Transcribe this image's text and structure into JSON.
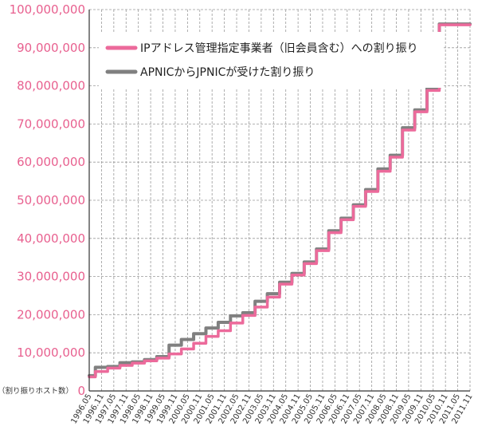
{
  "chart_data": {
    "type": "line",
    "title": "",
    "xlabel": "",
    "ylabel": "（割り振りホスト数）",
    "ylim": [
      0,
      100000000
    ],
    "y_ticks": [
      0,
      10000000,
      20000000,
      30000000,
      40000000,
      50000000,
      60000000,
      70000000,
      80000000,
      90000000,
      100000000
    ],
    "y_tick_labels": [
      "0",
      "10,000,000",
      "20,000,000",
      "30,000,000",
      "40,000,000",
      "50,000,000",
      "60,000,000",
      "70,000,000",
      "80,000,000",
      "90,000,000",
      "100,000,000"
    ],
    "x": [
      "1996.05",
      "1996.11",
      "1997.05",
      "1997.11",
      "1998.05",
      "1998.11",
      "1999.05",
      "1999.11",
      "2000.05",
      "2000.11",
      "2001.05",
      "2001.11",
      "2002.05",
      "2002.11",
      "2003.05",
      "2003.11",
      "2004.05",
      "2004.11",
      "2005.05",
      "2005.11",
      "2006.05",
      "2006.11",
      "2007.05",
      "2007.11",
      "2008.05",
      "2008.11",
      "2009.05",
      "2009.11",
      "2010.05",
      "2010.11",
      "2011.05",
      "2011.11"
    ],
    "grid": true,
    "legend_position": "top-right",
    "series": [
      {
        "name": "IPアドレス管理指定事業者（旧会員含む）への割り振り",
        "color": "#ec6a9b",
        "values": [
          3700000,
          5100000,
          6000000,
          6700000,
          7300000,
          7900000,
          8600000,
          9700000,
          11000000,
          12500000,
          14300000,
          15800000,
          17800000,
          19800000,
          22000000,
          24600000,
          28000000,
          30400000,
          33400000,
          36800000,
          41500000,
          44900000,
          48400000,
          52300000,
          57600000,
          61300000,
          68400000,
          73200000,
          78800000,
          96000000,
          96000000,
          96000000
        ]
      },
      {
        "name": "APNICからJPNICが受けた割り振り",
        "color": "#808080",
        "values": [
          4000000,
          6200000,
          6400000,
          7400000,
          7600000,
          8200000,
          9000000,
          12000000,
          13500000,
          15000000,
          16500000,
          18000000,
          19700000,
          20500000,
          23500000,
          25500000,
          28500000,
          30800000,
          33800000,
          37200000,
          42000000,
          45300000,
          48800000,
          52800000,
          58200000,
          61800000,
          69000000,
          73700000,
          79400000,
          96200000,
          96200000,
          96200000
        ]
      }
    ]
  }
}
